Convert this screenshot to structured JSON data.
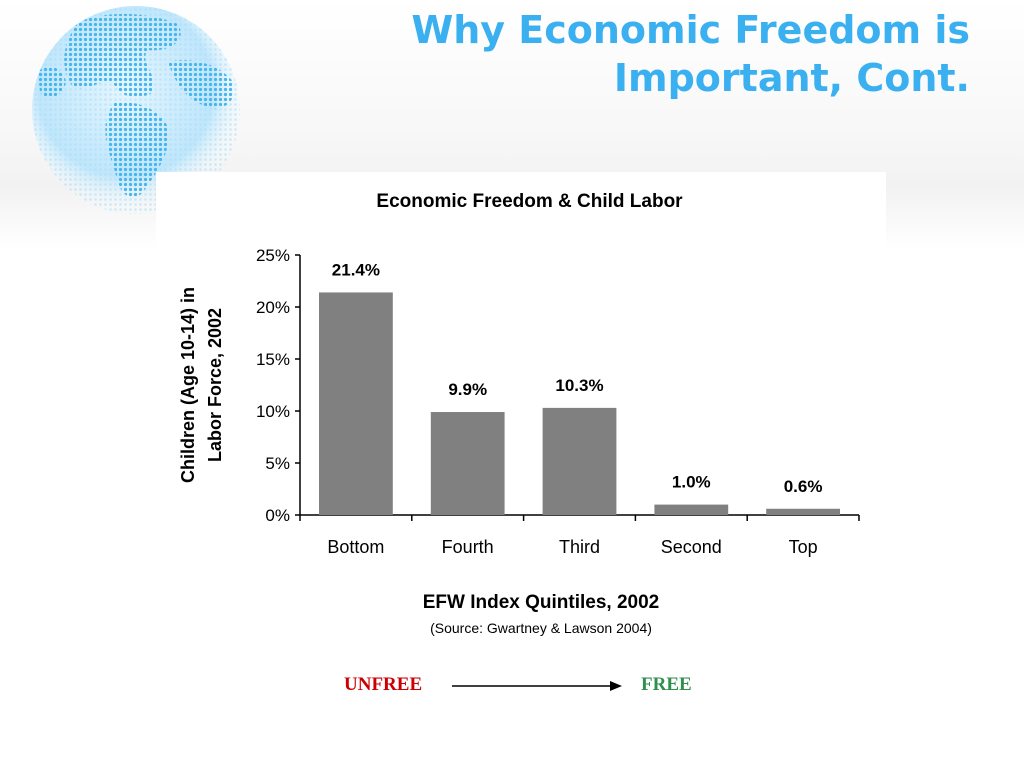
{
  "slide": {
    "title_line1": "Why Economic Freedom is",
    "title_line2": "Important, Cont."
  },
  "colors": {
    "title": "#3ab0f0",
    "bar": "#808080",
    "unfree": "#cc0000",
    "free": "#2f8f4f"
  },
  "chart_data": {
    "type": "bar",
    "title": "Economic Freedom & Child Labor",
    "xlabel": "EFW Index Quintiles, 2002",
    "source": "(Source: Gwartney & Lawson 2004)",
    "ylabel_line1": "Children (Age 10-14) in",
    "ylabel_line2": "Labor Force, 2002",
    "categories": [
      "Bottom",
      "Fourth",
      "Third",
      "Second",
      "Top"
    ],
    "values": [
      21.4,
      9.9,
      10.3,
      1.0,
      0.6
    ],
    "value_labels": [
      "21.4%",
      "9.9%",
      "10.3%",
      "1.0%",
      "0.6%"
    ],
    "ylim": [
      0,
      25
    ],
    "yticks": [
      0,
      5,
      10,
      15,
      20,
      25
    ],
    "ytick_labels": [
      "0%",
      "5%",
      "10%",
      "15%",
      "20%",
      "25%"
    ],
    "grid": false,
    "legend": "none"
  },
  "scale_arrow": {
    "left_label": "UNFREE",
    "right_label": "FREE"
  }
}
